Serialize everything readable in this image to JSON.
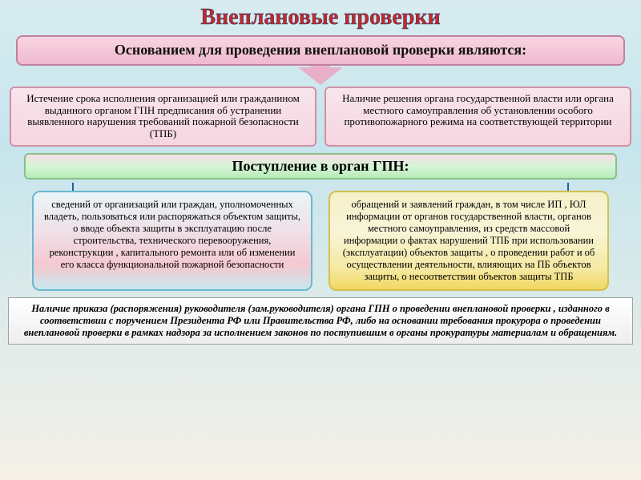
{
  "title": "Внеплановые проверки",
  "subtitle": "Основанием для проведения внеплановой проверки являются:",
  "topBoxes": {
    "left": "Истечение срока исполнения организацией или гражданином выданного органом ГПН предписания об устранении выявленного нарушения требований пожарной безопасности (ТПБ)",
    "right": "Наличие решения органа государственной власти или органа местного самоуправления об установлении особого противопожарного режима на соответствующей территории"
  },
  "gpnHeader": "Поступление в орган ГПН:",
  "details": {
    "left": "сведений от организаций или граждан, уполномоченных владеть, пользоваться или распоряжаться объектом защиты, о вводе объекта защиты в эксплуатацию после строительства, технического перевооружения, реконструкции , капитального ремонта  или об изменении его класса функциональной пожарной безопасности",
    "right": "обращений и заявлений граждан, в том числе ИП , ЮЛ информации от органов государственной власти, органов местного самоуправления, из средств массовой информации  о фактах нарушений ТПБ при использовании (эксплуатации)  объектов защиты , о проведении работ и об осуществлении деятельности, влияющих на ПБ объектов защиты, о несоответствии объектов защиты ТПБ"
  },
  "bottom": "Наличие приказа (распоряжения) руководителя (зам.руководителя) органа ГПН о проведении внеплановой проверки , изданного в соответствии с поручением Президента РФ или Правительства РФ, либо на основании требования прокурора о проведении внеплановой проверки в рамках надзора за исполнением законов по поступившим в органы прокуратуры  материалам и обращениям.",
  "colors": {
    "titleColor": "#c62828",
    "connector": "#2b5aa0"
  }
}
